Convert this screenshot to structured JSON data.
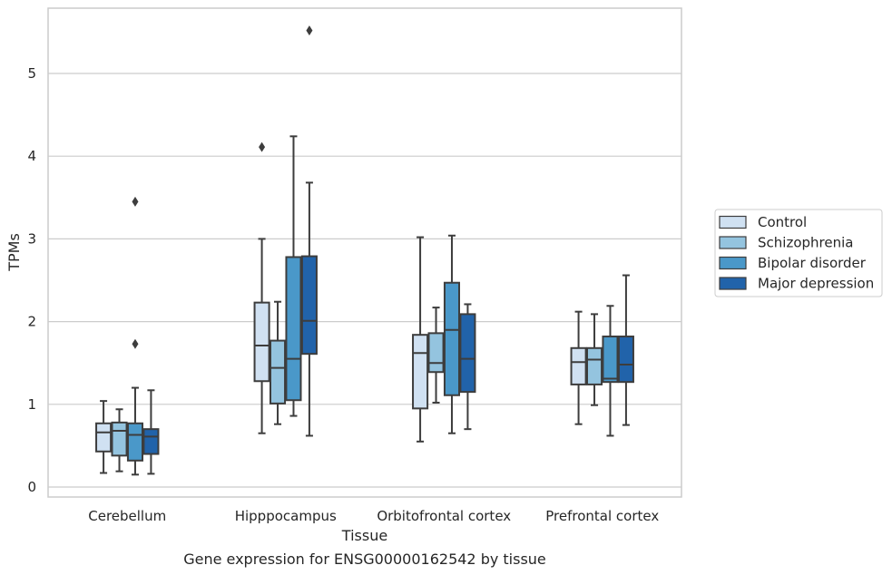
{
  "chart_data": {
    "type": "box",
    "title": "",
    "xlabel": "Tissue",
    "ylabel": "TPMs",
    "caption": "Gene expression for ENSG00000162542 by tissue",
    "categories": [
      "Cerebellum",
      "Hipppocampus",
      "Orbitofrontal cortex",
      "Prefrontal cortex"
    ],
    "ylim": [
      -0.1,
      5.8
    ],
    "yticks": [
      0,
      1,
      2,
      3,
      4,
      5
    ],
    "grid": true,
    "legend_position": "right",
    "series": [
      {
        "name": "Control",
        "color": "#d0e1f2",
        "boxes": [
          {
            "min": 0.17,
            "q1": 0.43,
            "median": 0.66,
            "q3": 0.77,
            "max": 1.04,
            "outliers": []
          },
          {
            "min": 0.65,
            "q1": 1.28,
            "median": 1.71,
            "q3": 2.23,
            "max": 3.0,
            "outliers": [
              4.11
            ]
          },
          {
            "min": 0.55,
            "q1": 0.95,
            "median": 1.62,
            "q3": 1.84,
            "max": 3.02,
            "outliers": []
          },
          {
            "min": 0.76,
            "q1": 1.24,
            "median": 1.51,
            "q3": 1.68,
            "max": 2.12,
            "outliers": []
          }
        ]
      },
      {
        "name": "Schizophrenia",
        "color": "#94c4df",
        "boxes": [
          {
            "min": 0.19,
            "q1": 0.38,
            "median": 0.68,
            "q3": 0.78,
            "max": 0.94,
            "outliers": []
          },
          {
            "min": 0.76,
            "q1": 1.01,
            "median": 1.44,
            "q3": 1.77,
            "max": 2.24,
            "outliers": []
          },
          {
            "min": 1.02,
            "q1": 1.39,
            "median": 1.5,
            "q3": 1.86,
            "max": 2.17,
            "outliers": []
          },
          {
            "min": 0.99,
            "q1": 1.24,
            "median": 1.54,
            "q3": 1.68,
            "max": 2.09,
            "outliers": []
          }
        ]
      },
      {
        "name": "Bipolar disorder",
        "color": "#4a98c9",
        "boxes": [
          {
            "min": 0.15,
            "q1": 0.32,
            "median": 0.63,
            "q3": 0.77,
            "max": 1.2,
            "outliers": [
              1.73,
              3.45
            ]
          },
          {
            "min": 0.86,
            "q1": 1.05,
            "median": 1.55,
            "q3": 2.78,
            "max": 4.24,
            "outliers": []
          },
          {
            "min": 0.65,
            "q1": 1.11,
            "median": 1.9,
            "q3": 2.47,
            "max": 3.04,
            "outliers": []
          },
          {
            "min": 0.62,
            "q1": 1.27,
            "median": 1.31,
            "q3": 1.82,
            "max": 2.19,
            "outliers": []
          }
        ]
      },
      {
        "name": "Major depression",
        "color": "#2163aa",
        "boxes": [
          {
            "min": 0.16,
            "q1": 0.4,
            "median": 0.61,
            "q3": 0.7,
            "max": 1.17,
            "outliers": []
          },
          {
            "min": 0.62,
            "q1": 1.61,
            "median": 2.01,
            "q3": 2.79,
            "max": 3.68,
            "outliers": [
              5.52
            ]
          },
          {
            "min": 0.7,
            "q1": 1.15,
            "median": 1.55,
            "q3": 2.09,
            "max": 2.21,
            "outliers": []
          },
          {
            "min": 0.75,
            "q1": 1.27,
            "median": 1.48,
            "q3": 1.82,
            "max": 2.56,
            "outliers": []
          }
        ]
      }
    ]
  }
}
